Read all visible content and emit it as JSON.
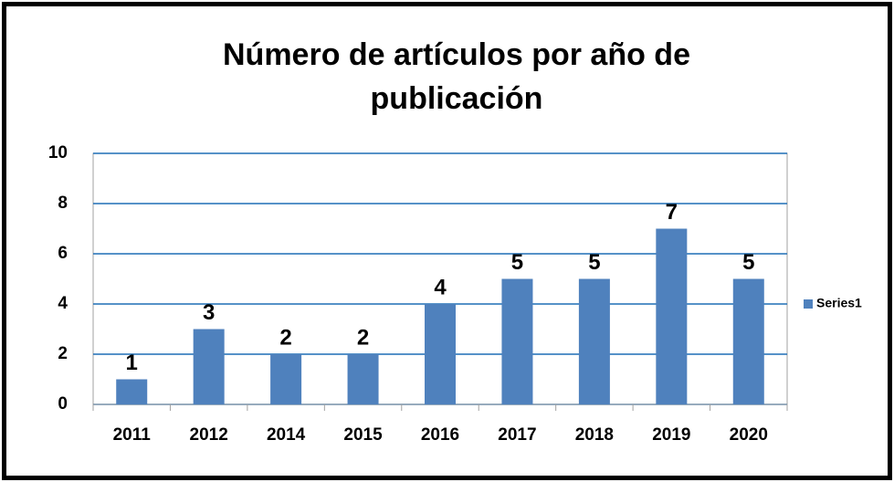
{
  "chart_data": {
    "type": "bar",
    "title": "Número de artículos por año de publicación",
    "categories": [
      "2011",
      "2012",
      "2014",
      "2015",
      "2016",
      "2017",
      "2018",
      "2019",
      "2020"
    ],
    "series": [
      {
        "name": "Series1",
        "color": "#4f81bd",
        "values": [
          1,
          3,
          2,
          2,
          4,
          5,
          5,
          7,
          5
        ]
      }
    ],
    "ylim": [
      0,
      10
    ],
    "yticks": [
      0,
      2,
      4,
      6,
      8,
      10
    ],
    "grid": true,
    "grid_color": "#1f6fb5",
    "legend": "right"
  }
}
